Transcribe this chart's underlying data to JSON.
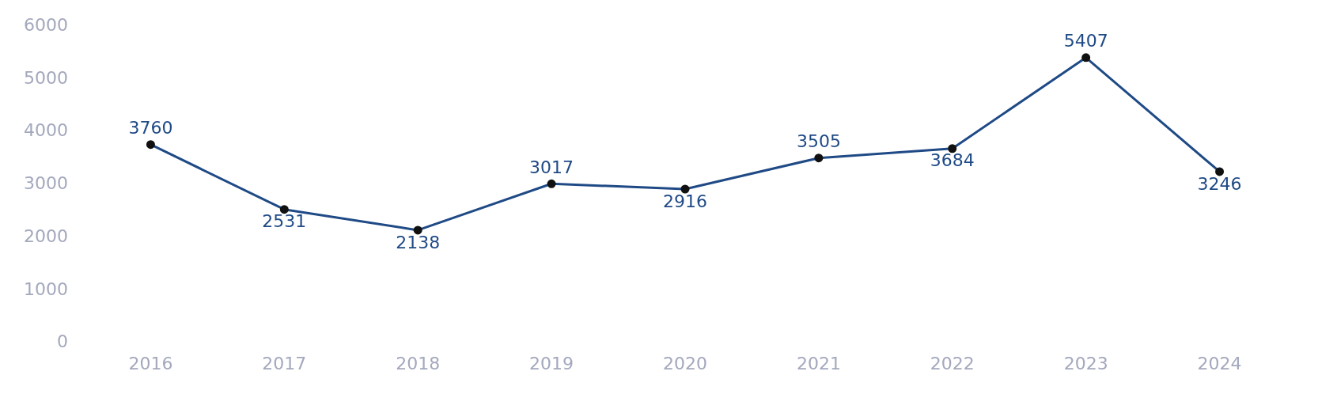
{
  "chart_data": {
    "type": "line",
    "categories": [
      "2016",
      "2017",
      "2018",
      "2019",
      "2020",
      "2021",
      "2022",
      "2023",
      "2024"
    ],
    "series": [
      {
        "color": "#1f4a86",
        "values": [
          3760,
          2531,
          2138,
          3017,
          2916,
          3505,
          3684,
          5407,
          3246
        ]
      }
    ],
    "ylim": [
      0,
      6000
    ],
    "yticks": [
      0,
      1000,
      2000,
      3000,
      4000,
      5000,
      6000
    ],
    "grid": false,
    "legend": false,
    "marker": "circle",
    "line_style": "solid",
    "data_labels": true
  }
}
